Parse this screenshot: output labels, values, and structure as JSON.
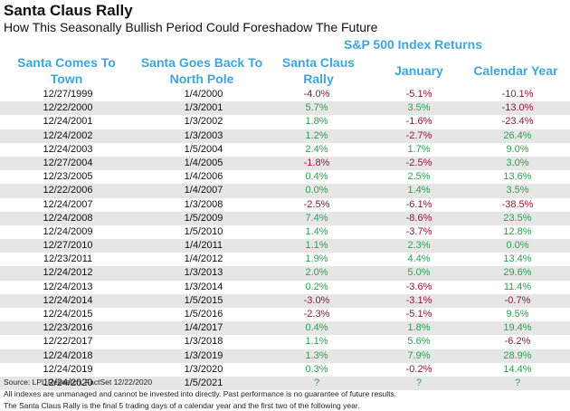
{
  "title": "Santa Claus Rally",
  "subtitle": "How This Seasonally Bullish Period Could Foreshadow The Future",
  "group_header": "S&P 500 Index Returns",
  "columns": {
    "start": "Santa Comes To Town",
    "end": "Santa Goes Back To North Pole",
    "santa": "Santa Claus Rally",
    "january": "January",
    "year": "Calendar Year"
  },
  "rows": [
    {
      "start": "12/27/1999",
      "end": "1/4/2000",
      "santa": "-4.0%",
      "january": "-5.1%",
      "year": "-10.1%"
    },
    {
      "start": "12/22/2000",
      "end": "1/3/2001",
      "santa": "5.7%",
      "january": "3.5%",
      "year": "-13.0%"
    },
    {
      "start": "12/24/2001",
      "end": "1/3/2002",
      "santa": "1.8%",
      "january": "-1.6%",
      "year": "-23.4%"
    },
    {
      "start": "12/24/2002",
      "end": "1/3/2003",
      "santa": "1.2%",
      "january": "-2.7%",
      "year": "26.4%"
    },
    {
      "start": "12/24/2003",
      "end": "1/5/2004",
      "santa": "2.4%",
      "january": "1.7%",
      "year": "9.0%"
    },
    {
      "start": "12/27/2004",
      "end": "1/4/2005",
      "santa": "-1.8%",
      "january": "-2.5%",
      "year": "3.0%"
    },
    {
      "start": "12/23/2005",
      "end": "1/4/2006",
      "santa": "0.4%",
      "january": "2.5%",
      "year": "13.6%"
    },
    {
      "start": "12/22/2006",
      "end": "1/4/2007",
      "santa": "0.0%",
      "january": "1.4%",
      "year": "3.5%"
    },
    {
      "start": "12/24/2007",
      "end": "1/3/2008",
      "santa": "-2.5%",
      "january": "-6.1%",
      "year": "-38.5%"
    },
    {
      "start": "12/24/2008",
      "end": "1/5/2009",
      "santa": "7.4%",
      "january": "-8.6%",
      "year": "23.5%"
    },
    {
      "start": "12/24/2009",
      "end": "1/5/2010",
      "santa": "1.4%",
      "january": "-3.7%",
      "year": "12.8%"
    },
    {
      "start": "12/27/2010",
      "end": "1/4/2011",
      "santa": "1.1%",
      "january": "2.3%",
      "year": "0.0%"
    },
    {
      "start": "12/23/2011",
      "end": "1/4/2012",
      "santa": "1.9%",
      "january": "4.4%",
      "year": "13.4%"
    },
    {
      "start": "12/24/2012",
      "end": "1/3/2013",
      "santa": "2.0%",
      "january": "5.0%",
      "year": "29.6%"
    },
    {
      "start": "12/24/2013",
      "end": "1/3/2014",
      "santa": "0.2%",
      "january": "-3.6%",
      "year": "11.4%"
    },
    {
      "start": "12/24/2014",
      "end": "1/5/2015",
      "santa": "-3.0%",
      "january": "-3.1%",
      "year": "-0.7%"
    },
    {
      "start": "12/24/2015",
      "end": "1/5/2016",
      "santa": "-2.3%",
      "january": "-5.1%",
      "year": "9.5%"
    },
    {
      "start": "12/23/2016",
      "end": "1/4/2017",
      "santa": "0.4%",
      "january": "1.8%",
      "year": "19.4%"
    },
    {
      "start": "12/22/2017",
      "end": "1/3/2018",
      "santa": "1.1%",
      "january": "5.6%",
      "year": "-6.2%"
    },
    {
      "start": "12/24/2018",
      "end": "1/3/2019",
      "santa": "1.3%",
      "january": "7.9%",
      "year": "28.9%"
    },
    {
      "start": "12/24/2019",
      "end": "1/3/2020",
      "santa": "0.3%",
      "january": "-0.2%",
      "year": "14.4%"
    },
    {
      "start": "12/24/2020",
      "end": "1/5/2021",
      "santa": "?",
      "january": "?",
      "year": "?"
    }
  ],
  "footnotes": [
    "Source: LPL Research, FactSet 12/22/2020",
    "All indexes are unmanaged and cannot be invested into directly. Past performance is no guarantee of future results.",
    "The Santa Claus Rally is the final 5 trading days of a calendar year and the first two of the following year."
  ],
  "colors": {
    "header": "#3ea6d8",
    "positive": "#2e9e4f",
    "negative": "#8a1b32",
    "row_shade": "#e6e6e6"
  }
}
